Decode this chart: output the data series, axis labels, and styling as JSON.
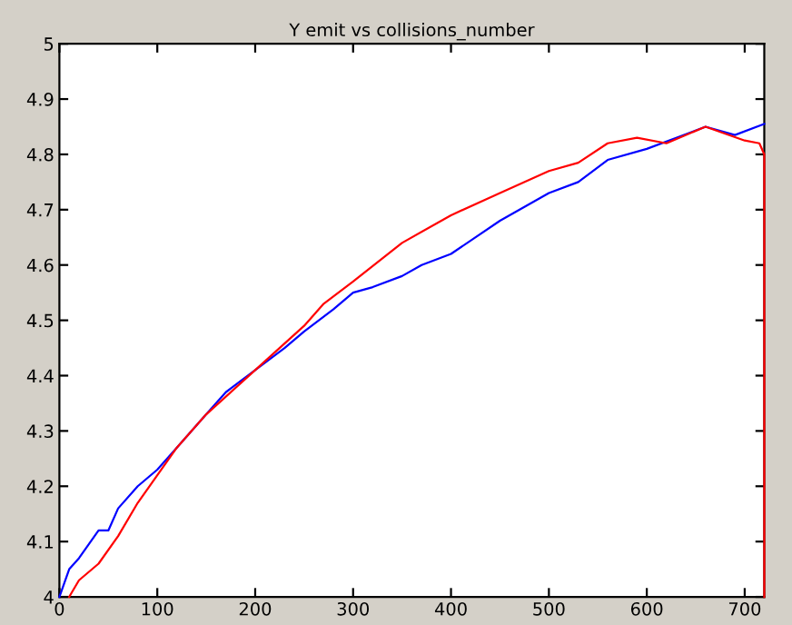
{
  "chart_data": {
    "type": "line",
    "title": "Y emit vs collisions_number",
    "xlim": [
      0,
      720
    ],
    "ylim": [
      4,
      5
    ],
    "xticks": [
      0,
      100,
      200,
      300,
      400,
      500,
      600,
      700
    ],
    "yticks": [
      4,
      4.1,
      4.2,
      4.3,
      4.4,
      4.5,
      4.6,
      4.7,
      4.8,
      4.9,
      5
    ],
    "grid": false,
    "legend": false,
    "series": [
      {
        "color": "#0000ff",
        "x": [
          0,
          10,
          20,
          40,
          50,
          60,
          80,
          100,
          120,
          150,
          170,
          200,
          230,
          250,
          280,
          300,
          320,
          350,
          370,
          400,
          450,
          500,
          530,
          560,
          600,
          630,
          660,
          690,
          720
        ],
        "values": [
          4.0,
          4.05,
          4.07,
          4.12,
          4.12,
          4.16,
          4.2,
          4.23,
          4.27,
          4.33,
          4.37,
          4.41,
          4.45,
          4.48,
          4.52,
          4.55,
          4.56,
          4.58,
          4.6,
          4.62,
          4.68,
          4.73,
          4.75,
          4.79,
          4.81,
          4.83,
          4.85,
          4.835,
          4.855
        ]
      },
      {
        "color": "#ff0000",
        "x": [
          10,
          20,
          40,
          60,
          80,
          100,
          120,
          150,
          200,
          250,
          270,
          300,
          350,
          400,
          450,
          500,
          530,
          560,
          590,
          620,
          660,
          700,
          715,
          720,
          720
        ],
        "values": [
          4.0,
          4.03,
          4.06,
          4.11,
          4.17,
          4.22,
          4.27,
          4.33,
          4.41,
          4.49,
          4.53,
          4.57,
          4.64,
          4.69,
          4.73,
          4.77,
          4.785,
          4.82,
          4.83,
          4.82,
          4.85,
          4.825,
          4.82,
          4.8,
          4.0
        ]
      }
    ]
  }
}
